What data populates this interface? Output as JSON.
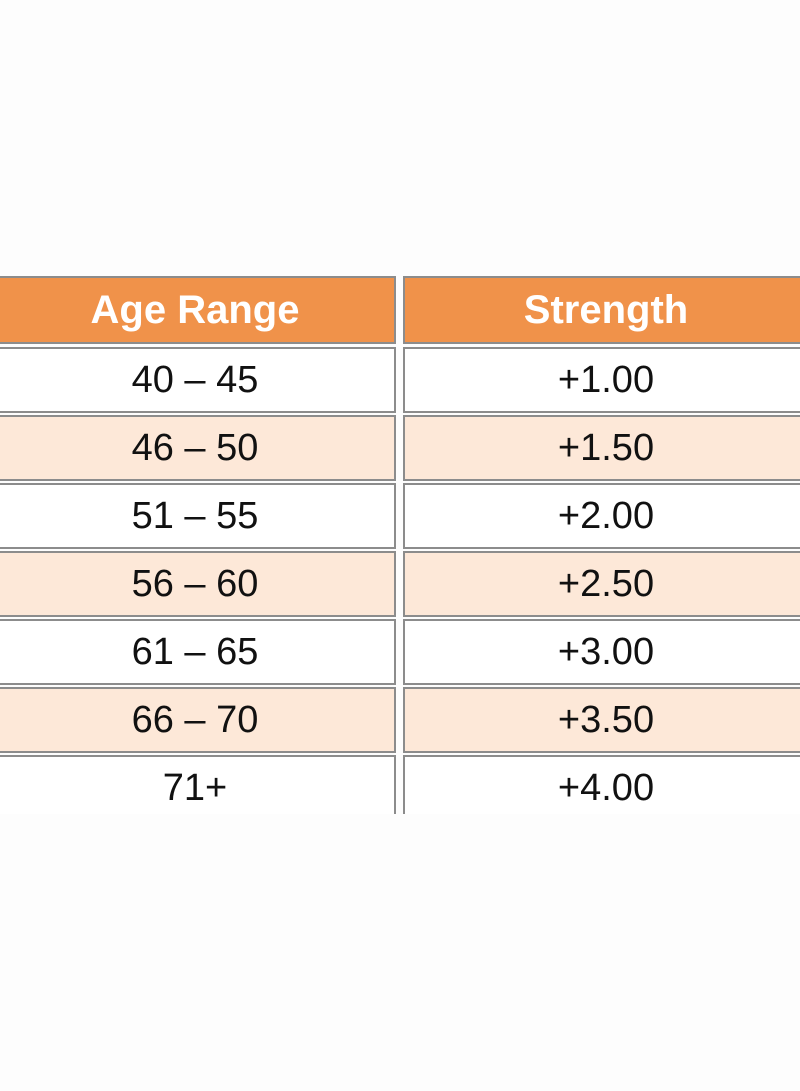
{
  "table": {
    "header": [
      "Age Range",
      "Strength"
    ],
    "rows": [
      [
        "40 – 45",
        "+1.00"
      ],
      [
        "46 – 50",
        "+1.50"
      ],
      [
        "51 – 55",
        "+2.00"
      ],
      [
        "56 – 60",
        "+2.50"
      ],
      [
        "61 – 65",
        "+3.00"
      ],
      [
        "66 – 70",
        "+3.50"
      ],
      [
        "71+",
        "+4.00"
      ]
    ]
  }
}
